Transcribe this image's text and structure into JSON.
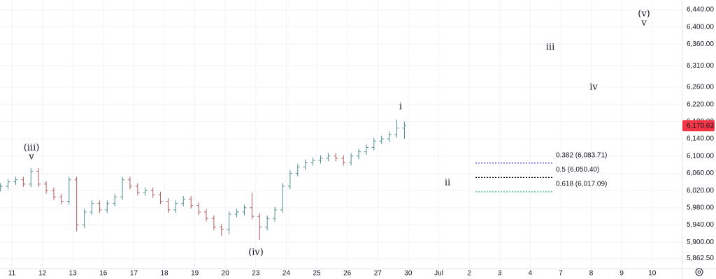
{
  "chart_data": {
    "type": "ohlc",
    "x": [
      -0.375,
      -0.125,
      0.125,
      0.375,
      0.625,
      0.875,
      1.125,
      1.375,
      1.625,
      1.875,
      2.125,
      2.375,
      2.625,
      2.875,
      3.125,
      3.375,
      3.625,
      3.875,
      4.125,
      4.375,
      4.625,
      4.875,
      5.125,
      5.375,
      5.625,
      5.875,
      6.125,
      6.375,
      6.625,
      6.875,
      7.125,
      7.375,
      7.625,
      7.875,
      8.125,
      8.375,
      8.625,
      8.875,
      9.125,
      9.375,
      9.625,
      9.875,
      10.125,
      10.375,
      10.625,
      10.875,
      11.125,
      11.375,
      11.625,
      11.875,
      12.125,
      12.375,
      12.625,
      12.875
    ],
    "open": [
      6025,
      6030,
      6040,
      6045,
      6035,
      6065,
      6035,
      6020,
      6005,
      5995,
      6045,
      5940,
      5970,
      5990,
      5975,
      5990,
      6005,
      6045,
      6030,
      6015,
      6020,
      6010,
      5995,
      5975,
      5990,
      6000,
      5985,
      5970,
      5955,
      5935,
      5930,
      5965,
      5970,
      5980,
      5960,
      5935,
      5955,
      5975,
      6030,
      6060,
      6075,
      6085,
      6090,
      6095,
      6100,
      6095,
      6085,
      6100,
      6110,
      6120,
      6135,
      6140,
      6150,
      6165
    ],
    "high": [
      6037,
      6047,
      6052,
      6052,
      6072,
      6072,
      6042,
      6027,
      6012,
      6052,
      6052,
      5977,
      5997,
      5997,
      5997,
      6012,
      6052,
      6052,
      6037,
      6027,
      6027,
      6017,
      6002,
      5997,
      6007,
      6007,
      5992,
      5977,
      5962,
      5942,
      5972,
      5977,
      5987,
      6015,
      5967,
      5962,
      5982,
      6037,
      6067,
      6082,
      6092,
      6097,
      6102,
      6107,
      6107,
      6102,
      6107,
      6117,
      6127,
      6142,
      6147,
      6157,
      6185,
      6180
    ],
    "low": [
      6018,
      6023,
      6033,
      6028,
      6028,
      6028,
      6013,
      5998,
      5988,
      5988,
      5925,
      5933,
      5963,
      5968,
      5968,
      5983,
      5998,
      6023,
      6008,
      6008,
      6003,
      5988,
      5968,
      5968,
      5983,
      5978,
      5963,
      5948,
      5928,
      5915,
      5918,
      5958,
      5963,
      5953,
      5905,
      5928,
      5948,
      5968,
      6023,
      6053,
      6068,
      6078,
      6083,
      6088,
      6088,
      6078,
      6078,
      6093,
      6103,
      6113,
      6128,
      6133,
      6143,
      6140
    ],
    "close": [
      6030,
      6040,
      6045,
      6035,
      6065,
      6035,
      6020,
      6005,
      5995,
      6045,
      5940,
      5970,
      5990,
      5975,
      5990,
      6005,
      6045,
      6030,
      6015,
      6020,
      6010,
      5995,
      5975,
      5990,
      6000,
      5985,
      5970,
      5955,
      5935,
      5930,
      5965,
      5970,
      5980,
      5960,
      5935,
      5955,
      5975,
      6030,
      6060,
      6075,
      6085,
      6090,
      6095,
      6100,
      6095,
      6085,
      6100,
      6110,
      6120,
      6135,
      6140,
      6150,
      6165,
      6170.63
    ],
    "up_color": "#4f8f87",
    "down_color": "#b25a5a",
    "xlim": [
      -0.39,
      21.97
    ],
    "xticks": [
      {
        "value": 0,
        "label": "11"
      },
      {
        "value": 1,
        "label": "12"
      },
      {
        "value": 2,
        "label": "13"
      },
      {
        "value": 3,
        "label": "16"
      },
      {
        "value": 4,
        "label": "17"
      },
      {
        "value": 5,
        "label": "18"
      },
      {
        "value": 6,
        "label": "19"
      },
      {
        "value": 7,
        "label": "20"
      },
      {
        "value": 8,
        "label": "23"
      },
      {
        "value": 9,
        "label": "24"
      },
      {
        "value": 10,
        "label": "25"
      },
      {
        "value": 11,
        "label": "26"
      },
      {
        "value": 12,
        "label": "27"
      },
      {
        "value": 13,
        "label": "30"
      },
      {
        "value": 14,
        "label": "Jul"
      },
      {
        "value": 15,
        "label": "2"
      },
      {
        "value": 16,
        "label": "3"
      },
      {
        "value": 17,
        "label": "4"
      },
      {
        "value": 18,
        "label": "7"
      },
      {
        "value": 19,
        "label": "8"
      },
      {
        "value": 20,
        "label": "9"
      },
      {
        "value": 21,
        "label": "10"
      }
    ],
    "ylim": [
      5838.7,
      6462.7
    ],
    "yticks": [
      {
        "value": 6440,
        "label": "6,440.00"
      },
      {
        "value": 6400,
        "label": "6,400.00"
      },
      {
        "value": 6360,
        "label": "6,360.00"
      },
      {
        "value": 6310,
        "label": "6,310.00"
      },
      {
        "value": 6260,
        "label": "6,260.00"
      },
      {
        "value": 6220,
        "label": "6,220.00"
      },
      {
        "value": 6180,
        "label": "6,180.00"
      },
      {
        "value": 6140,
        "label": "6,140.00"
      },
      {
        "value": 6100,
        "label": "6,100.00"
      },
      {
        "value": 6060,
        "label": "6,060.00"
      },
      {
        "value": 6020,
        "label": "6,020.00"
      },
      {
        "value": 5980,
        "label": "5,980.00"
      },
      {
        "value": 5940,
        "label": "5,940.00"
      },
      {
        "value": 5900,
        "label": "5,900.00"
      },
      {
        "value": 5862.5,
        "label": "5,862.50"
      }
    ],
    "grid": true,
    "last_price": {
      "value": 6170.63,
      "label": "6,170.63",
      "color": "#f23645"
    },
    "fib_levels": [
      {
        "label": "0.382 (6,083.71)",
        "value": 6083.71,
        "color": "#2a2ae0"
      },
      {
        "label": "0.5 (6,050.40)",
        "value": 6050.4,
        "color": "#131722"
      },
      {
        "label": "0.618 (6,017.09)",
        "value": 6017.09,
        "color": "#22b089"
      }
    ],
    "annotations": [
      "(iii)",
      "v",
      "(iv)",
      "i",
      "ii",
      "iii",
      "iv",
      "(v)",
      "v"
    ]
  }
}
